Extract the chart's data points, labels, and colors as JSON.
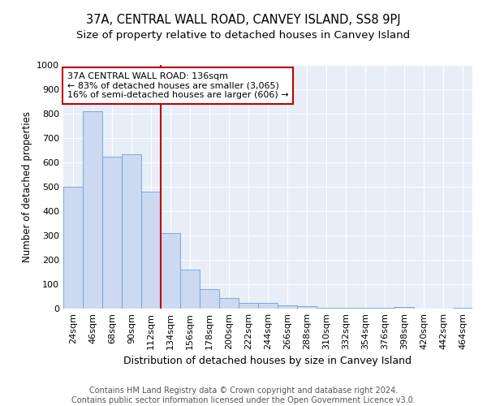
{
  "title": "37A, CENTRAL WALL ROAD, CANVEY ISLAND, SS8 9PJ",
  "subtitle": "Size of property relative to detached houses in Canvey Island",
  "xlabel": "Distribution of detached houses by size in Canvey Island",
  "ylabel": "Number of detached properties",
  "footer_line1": "Contains HM Land Registry data © Crown copyright and database right 2024.",
  "footer_line2": "Contains public sector information licensed under the Open Government Licence v3.0.",
  "categories": [
    "24sqm",
    "46sqm",
    "68sqm",
    "90sqm",
    "112sqm",
    "134sqm",
    "156sqm",
    "178sqm",
    "200sqm",
    "222sqm",
    "244sqm",
    "266sqm",
    "288sqm",
    "310sqm",
    "332sqm",
    "354sqm",
    "376sqm",
    "398sqm",
    "420sqm",
    "442sqm",
    "464sqm"
  ],
  "values": [
    500,
    810,
    625,
    635,
    480,
    310,
    160,
    80,
    45,
    22,
    22,
    15,
    10,
    5,
    3,
    3,
    2,
    8,
    1,
    1,
    5
  ],
  "bar_color": "#ccd9f0",
  "bar_edge_color": "#6a9fd8",
  "vline_color": "#c00000",
  "annotation_text": "37A CENTRAL WALL ROAD: 136sqm\n← 83% of detached houses are smaller (3,065)\n16% of semi-detached houses are larger (606) →",
  "annotation_box_color": "white",
  "annotation_box_edge_color": "#c00000",
  "ylim": [
    0,
    1000
  ],
  "yticks": [
    0,
    100,
    200,
    300,
    400,
    500,
    600,
    700,
    800,
    900,
    1000
  ],
  "bg_color": "#e8eef8",
  "grid_color": "white",
  "title_fontsize": 10.5,
  "subtitle_fontsize": 9.5,
  "xlabel_fontsize": 9,
  "ylabel_fontsize": 8.5,
  "tick_fontsize": 8,
  "footer_fontsize": 7,
  "annot_fontsize": 8
}
